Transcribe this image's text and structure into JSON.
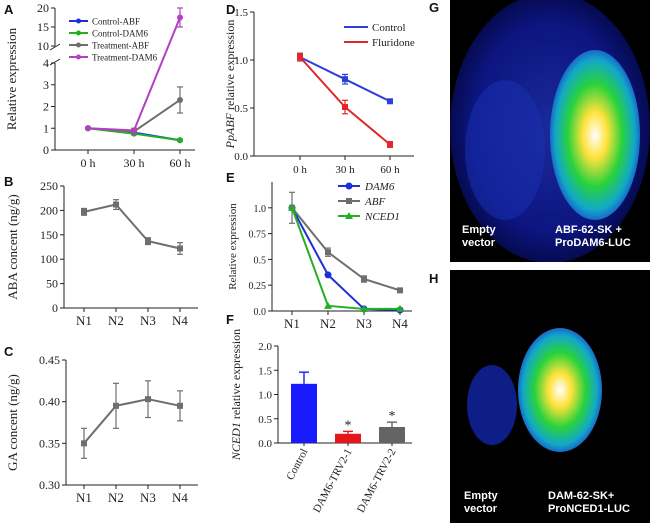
{
  "chart_data": [
    {
      "panel": "A",
      "type": "line",
      "ylabel": "Relative expression",
      "categories": [
        "0 h",
        "30 h",
        "60 h"
      ],
      "ylim_lower": [
        0,
        4
      ],
      "ylim_upper": [
        10,
        20
      ],
      "yticks_lower": [
        0,
        1,
        2,
        3,
        4
      ],
      "yticks_upper": [
        10,
        15,
        20
      ],
      "legend": "top-left",
      "series": [
        {
          "name": "Control-ABF",
          "color": "#1f2fd6",
          "values": [
            1.0,
            0.8,
            0.45
          ]
        },
        {
          "name": "Control-DAM6",
          "color": "#22b022",
          "values": [
            1.0,
            0.75,
            0.45
          ]
        },
        {
          "name": "Treatment-ABF",
          "color": "#6e6e6e",
          "values": [
            1.0,
            0.85,
            2.3
          ],
          "err": [
            0.05,
            0.15,
            0.6
          ]
        },
        {
          "name": "Treatment-DAM6",
          "color": "#b23fc4",
          "values": [
            1.0,
            0.9,
            17.5
          ],
          "err": [
            0.05,
            0.1,
            2.5
          ]
        }
      ]
    },
    {
      "panel": "B",
      "type": "line",
      "ylabel": "ABA concent (ng/g)",
      "categories": [
        "N1",
        "N2",
        "N3",
        "N4"
      ],
      "ylim": [
        0,
        250
      ],
      "yticks": [
        0,
        50,
        100,
        150,
        200,
        250
      ],
      "series": [
        {
          "color": "#6e6e6e",
          "values": [
            197,
            212,
            137,
            122
          ],
          "err": [
            7,
            10,
            7,
            12
          ]
        }
      ]
    },
    {
      "panel": "C",
      "type": "line",
      "ylabel": "GA concent (ng/g)",
      "categories": [
        "N1",
        "N2",
        "N3",
        "N4"
      ],
      "ylim": [
        0.3,
        0.45
      ],
      "yticks": [
        "0.30",
        "0.35",
        "0.40",
        "0.45"
      ],
      "series": [
        {
          "color": "#6e6e6e",
          "values": [
            0.35,
            0.395,
            0.403,
            0.395
          ],
          "err": [
            0.018,
            0.027,
            0.022,
            0.018
          ]
        }
      ]
    },
    {
      "panel": "D",
      "type": "line",
      "ylabel": "PpABF relative expression",
      "categories": [
        "0 h",
        "30 h",
        "60 h"
      ],
      "ylim": [
        0,
        1.5
      ],
      "yticks": [
        "0.0",
        "0.5",
        "1.0",
        "1.5"
      ],
      "legend": "top-right",
      "series": [
        {
          "name": "Control",
          "color": "#2d3fd6",
          "values": [
            1.03,
            0.8,
            0.57
          ],
          "err": [
            0.04,
            0.05,
            0.02
          ]
        },
        {
          "name": "Fluridone",
          "color": "#e0282a",
          "values": [
            1.03,
            0.51,
            0.12
          ],
          "err": [
            0.04,
            0.07,
            0.03
          ]
        }
      ]
    },
    {
      "panel": "E",
      "type": "line",
      "ylabel": "Relative expression",
      "categories": [
        "N1",
        "N2",
        "N3",
        "N4"
      ],
      "ylim": [
        0,
        1.25
      ],
      "yticks": [
        "0.0",
        "0.25",
        "0.5",
        "0.75",
        "1.0"
      ],
      "legend": "top-right",
      "series": [
        {
          "name": "DAM6",
          "color": "#1f2fd6",
          "marker": "circle",
          "values": [
            1.0,
            0.35,
            0.02,
            0.01
          ]
        },
        {
          "name": "ABF",
          "color": "#6e6e6e",
          "marker": "square",
          "values": [
            1.0,
            0.57,
            0.31,
            0.2
          ],
          "err": [
            0.15,
            0.04,
            0.03,
            0.02
          ]
        },
        {
          "name": "NCED1",
          "color": "#22b022",
          "marker": "triangle",
          "values": [
            1.0,
            0.05,
            0.02,
            0.02
          ]
        }
      ]
    },
    {
      "panel": "F",
      "type": "bar",
      "ylabel": "NCED1 relative expression",
      "categories": [
        "Control",
        "DAM6-TRV2-1",
        "DAM6-TRV2-2"
      ],
      "ylim": [
        0,
        2.0
      ],
      "yticks": [
        "0.0",
        "0.5",
        "1.0",
        "1.5",
        "2.0"
      ],
      "values": [
        1.22,
        0.19,
        0.33
      ],
      "err": [
        0.24,
        0.05,
        0.1
      ],
      "colors": [
        "#1a1aff",
        "#e8141b",
        "#646464"
      ],
      "significance": [
        "",
        "*",
        "*"
      ]
    }
  ],
  "images": {
    "G": {
      "label": "G",
      "left_text": [
        "Empty",
        "vector"
      ],
      "right_text": [
        "ABF-62-SK +",
        "ProDAM6-LUC"
      ]
    },
    "H": {
      "label": "H",
      "left_text": [
        "Empty",
        "vector"
      ],
      "right_text": [
        "DAM-62-SK+",
        "ProNCED1-LUC"
      ]
    }
  }
}
